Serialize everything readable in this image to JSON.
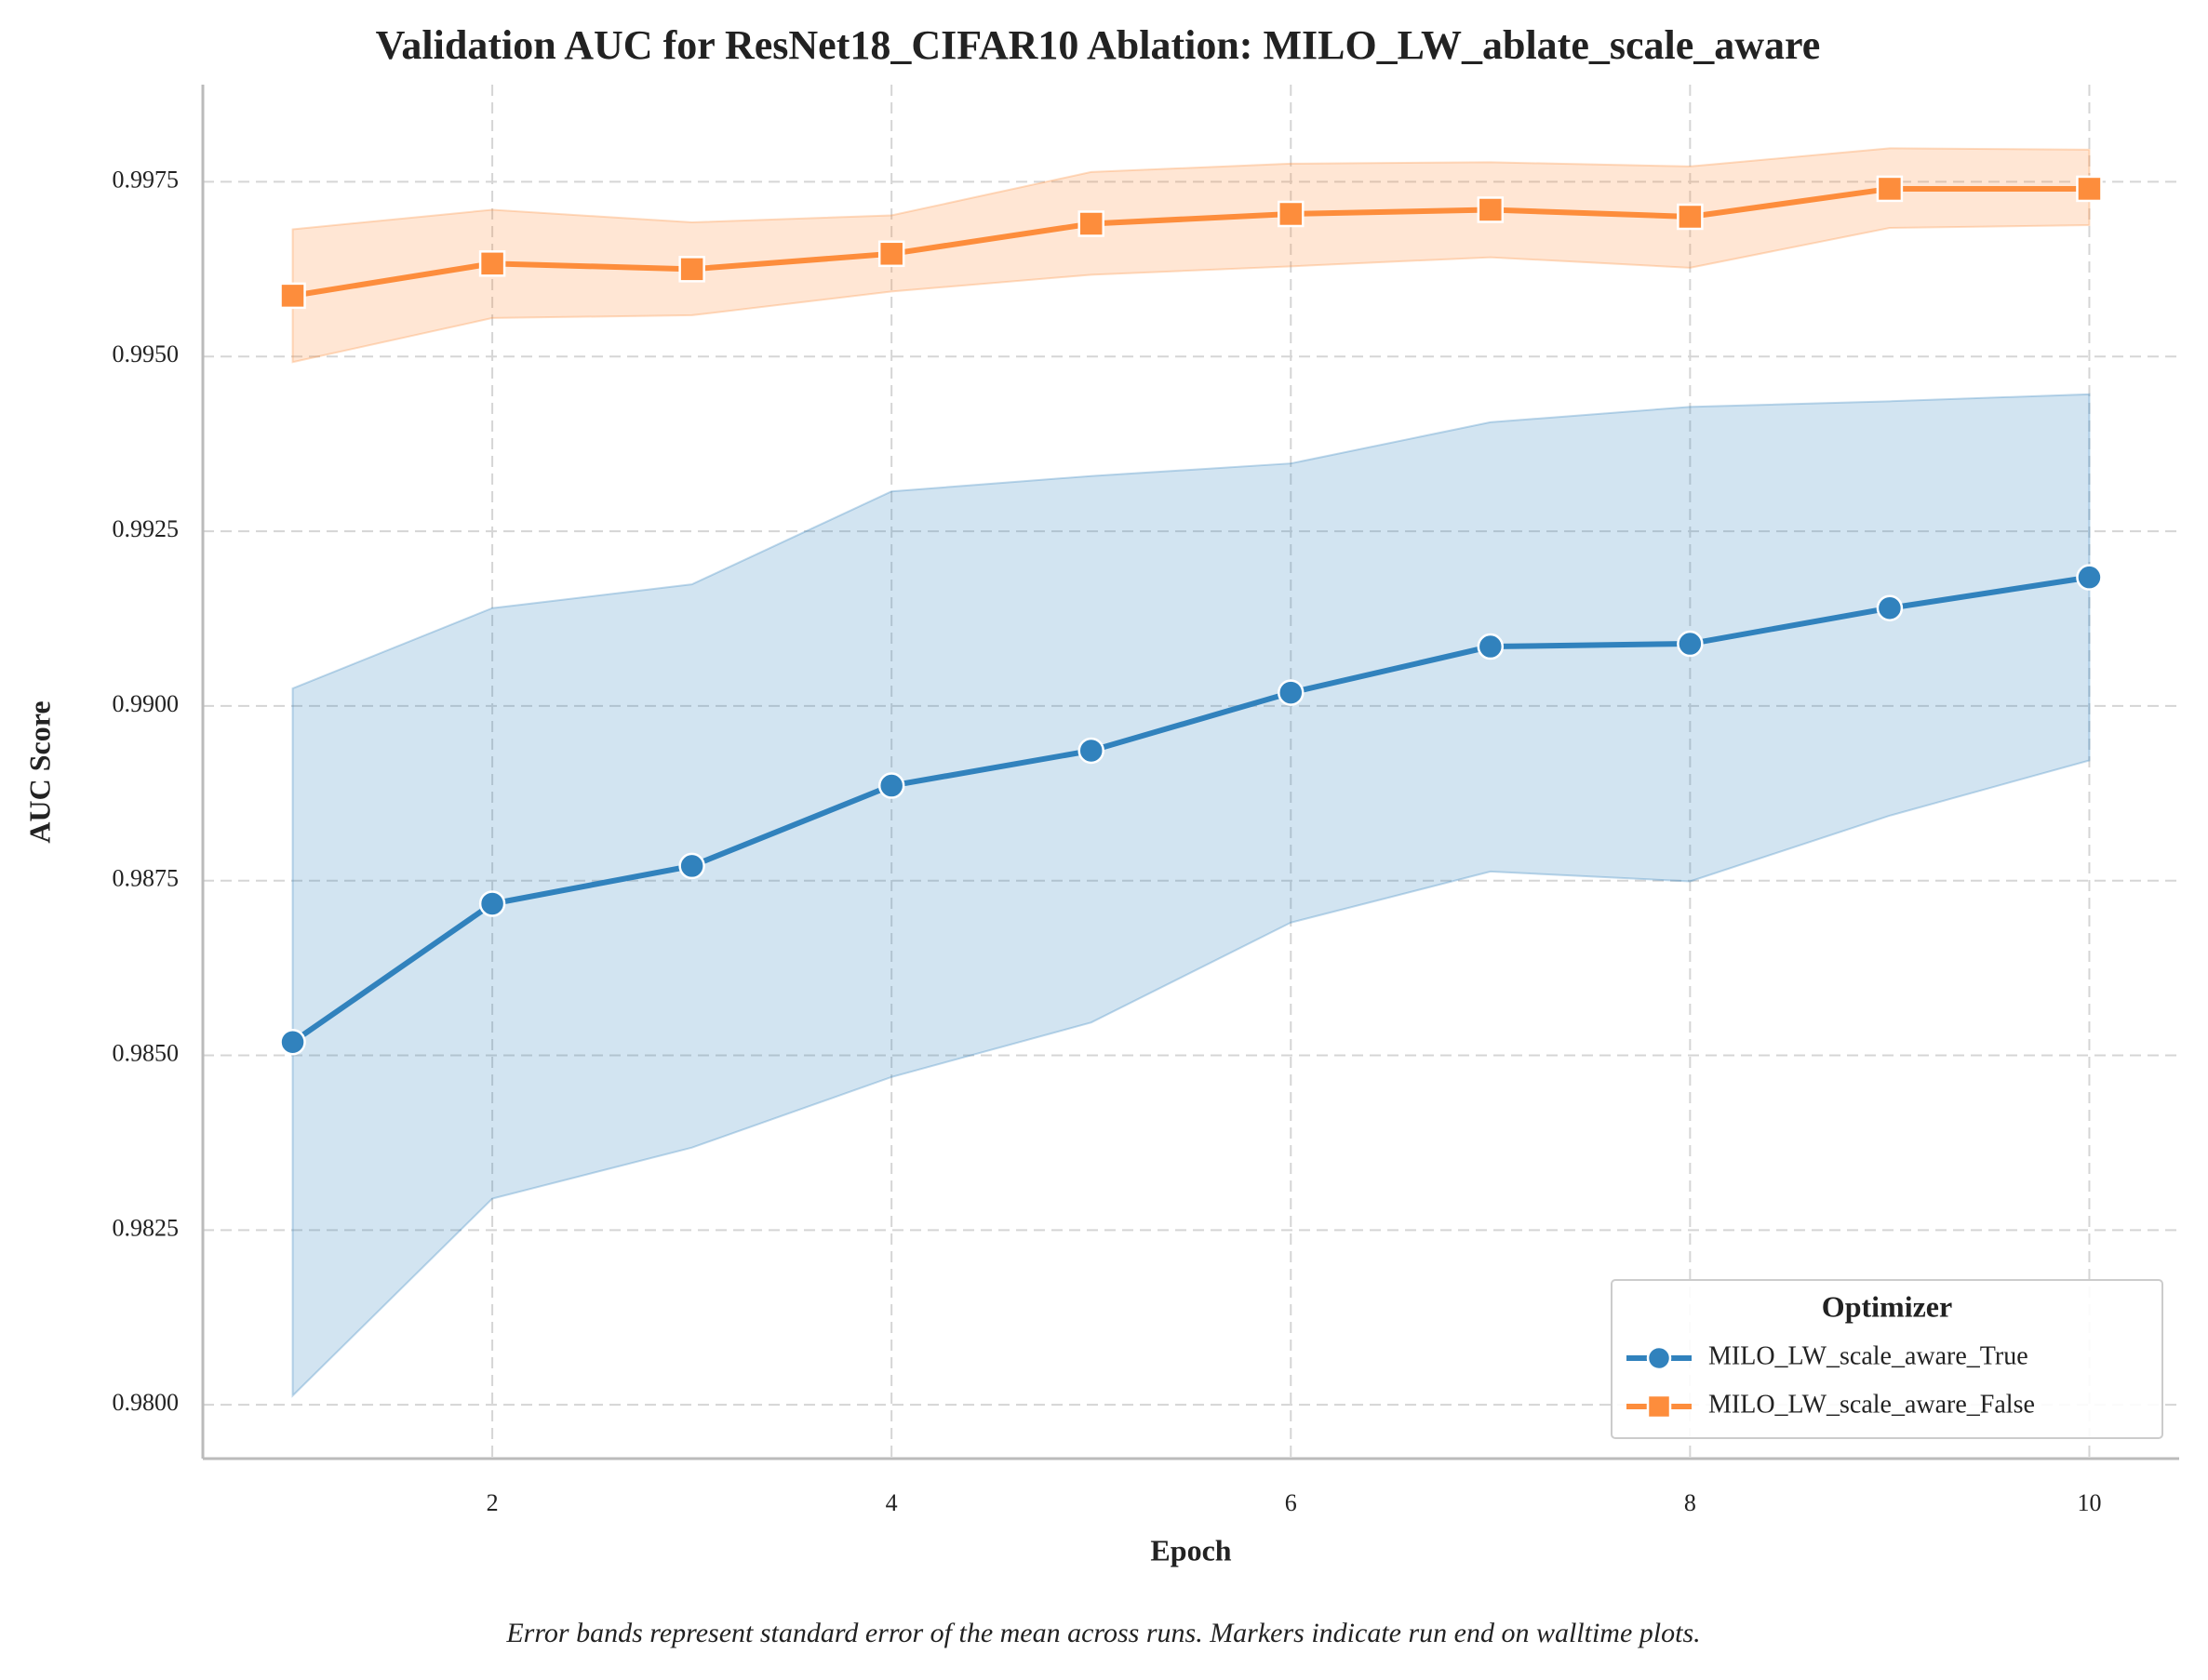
{
  "chart_data": {
    "type": "line",
    "title": "Validation AUC for ResNet18_CIFAR10 Ablation: MILO_LW_ablate_scale_aware",
    "xlabel": "Epoch",
    "ylabel": "AUC Score",
    "caption": "Error bands represent standard error of the mean across runs. Markers indicate run end on walltime plots.",
    "legend_title": "Optimizer",
    "legend_loc": "lower right",
    "grid": true,
    "x": [
      1,
      2,
      3,
      4,
      5,
      6,
      7,
      8,
      9,
      10
    ],
    "xlim": [
      0.55,
      10.45
    ],
    "xticks": [
      2,
      4,
      6,
      8,
      10
    ],
    "ylim": [
      0.97923,
      0.99889
    ],
    "yticks": [
      {
        "value": 0.98,
        "label": "0.9800"
      },
      {
        "value": 0.9825,
        "label": "0.9825"
      },
      {
        "value": 0.985,
        "label": "0.9850"
      },
      {
        "value": 0.9875,
        "label": "0.9875"
      },
      {
        "value": 0.99,
        "label": "0.9900"
      },
      {
        "value": 0.9925,
        "label": "0.9925"
      },
      {
        "value": 0.995,
        "label": "0.9950"
      },
      {
        "value": 0.9975,
        "label": "0.9975"
      }
    ],
    "series": [
      {
        "name": "MILO_LW_scale_aware_True",
        "color": "#3182bd",
        "marker": "circle",
        "values": [
          0.98519,
          0.98717,
          0.98771,
          0.98886,
          0.98936,
          0.99019,
          0.99085,
          0.99089,
          0.9914,
          0.99184
        ],
        "upper": [
          0.99025,
          0.9914,
          0.99174,
          0.99307,
          0.99329,
          0.99347,
          0.99406,
          0.99428,
          0.99436,
          0.99446
        ],
        "lower": [
          0.98013,
          0.98295,
          0.98368,
          0.98469,
          0.98547,
          0.9869,
          0.98763,
          0.98749,
          0.98843,
          0.98922
        ]
      },
      {
        "name": "MILO_LW_scale_aware_False",
        "color": "#fd8d3c",
        "marker": "square",
        "values": [
          0.99587,
          0.99633,
          0.99625,
          0.99647,
          0.9969,
          0.99704,
          0.9971,
          0.997,
          0.9974,
          0.9974
        ],
        "upper": [
          0.99682,
          0.9971,
          0.99692,
          0.99702,
          0.99764,
          0.99776,
          0.99778,
          0.99772,
          0.99798,
          0.99796
        ],
        "lower": [
          0.99492,
          0.99555,
          0.99559,
          0.99593,
          0.99617,
          0.99629,
          0.99642,
          0.99627,
          0.99684,
          0.99688
        ]
      }
    ]
  }
}
